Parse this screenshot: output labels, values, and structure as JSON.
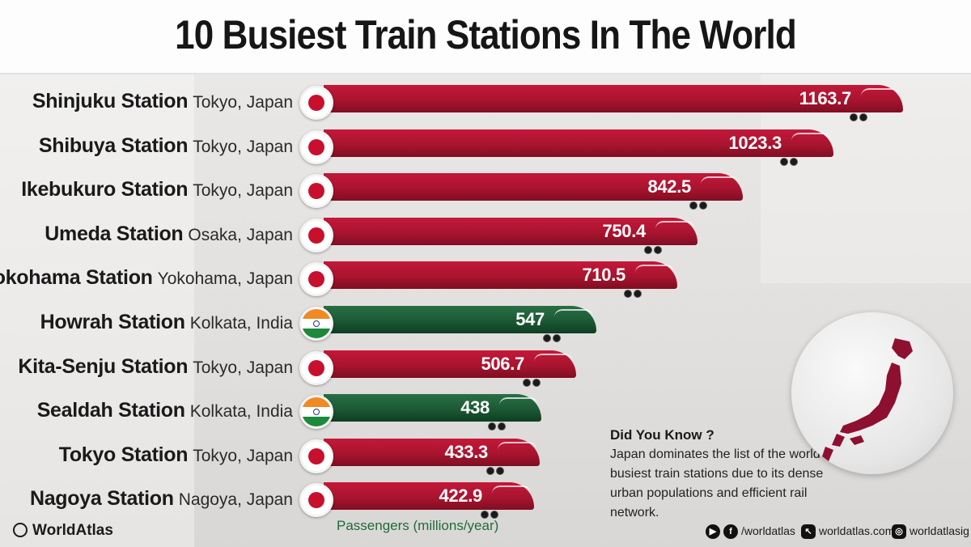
{
  "title": "10 Busiest Train Stations In The World",
  "chart_data": {
    "type": "bar",
    "orientation": "horizontal",
    "title": "10 Busiest Train Stations In The World",
    "xlabel": "Passengers (millions/year)",
    "categories": [
      "Shinjuku Station",
      "Shibuya Station",
      "Ikebukuro Station",
      "Umeda Station",
      "Yokohama Station",
      "Howrah Station",
      "Kita-Senju Station",
      "Sealdah Station",
      "Tokyo Station",
      "Nagoya Station"
    ],
    "locations": [
      "Tokyo, Japan",
      "Tokyo, Japan",
      "Tokyo, Japan",
      "Osaka, Japan",
      "Yokohama, Japan",
      "Kolkata, India",
      "Tokyo, Japan",
      "Kolkata, India",
      "Tokyo, Japan",
      "Nagoya, Japan"
    ],
    "countries": [
      "japan",
      "japan",
      "japan",
      "japan",
      "japan",
      "india",
      "japan",
      "india",
      "japan",
      "japan"
    ],
    "values": [
      1163.7,
      1023.3,
      842.5,
      750.4,
      710.5,
      547,
      506.7,
      438,
      433.3,
      422.9
    ],
    "value_labels": [
      "1163.7",
      "1023.3",
      "842.5",
      "750.4",
      "710.5",
      "547",
      "506.7",
      "438",
      "433.3",
      "422.9"
    ],
    "xlim": [
      0,
      1163.7
    ],
    "colors": {
      "japan": "#b3152f",
      "india": "#1b5a35"
    }
  },
  "did_you_know": {
    "title": "Did You Know ?",
    "text": "Japan dominates the list of the world's busiest train stations due to its dense urban populations and efficient rail network."
  },
  "footer": {
    "brand": "WorldAtlas",
    "social_handle": "/worldatlas",
    "website": "worldatlas.com",
    "instagram": "worldatlasig"
  }
}
